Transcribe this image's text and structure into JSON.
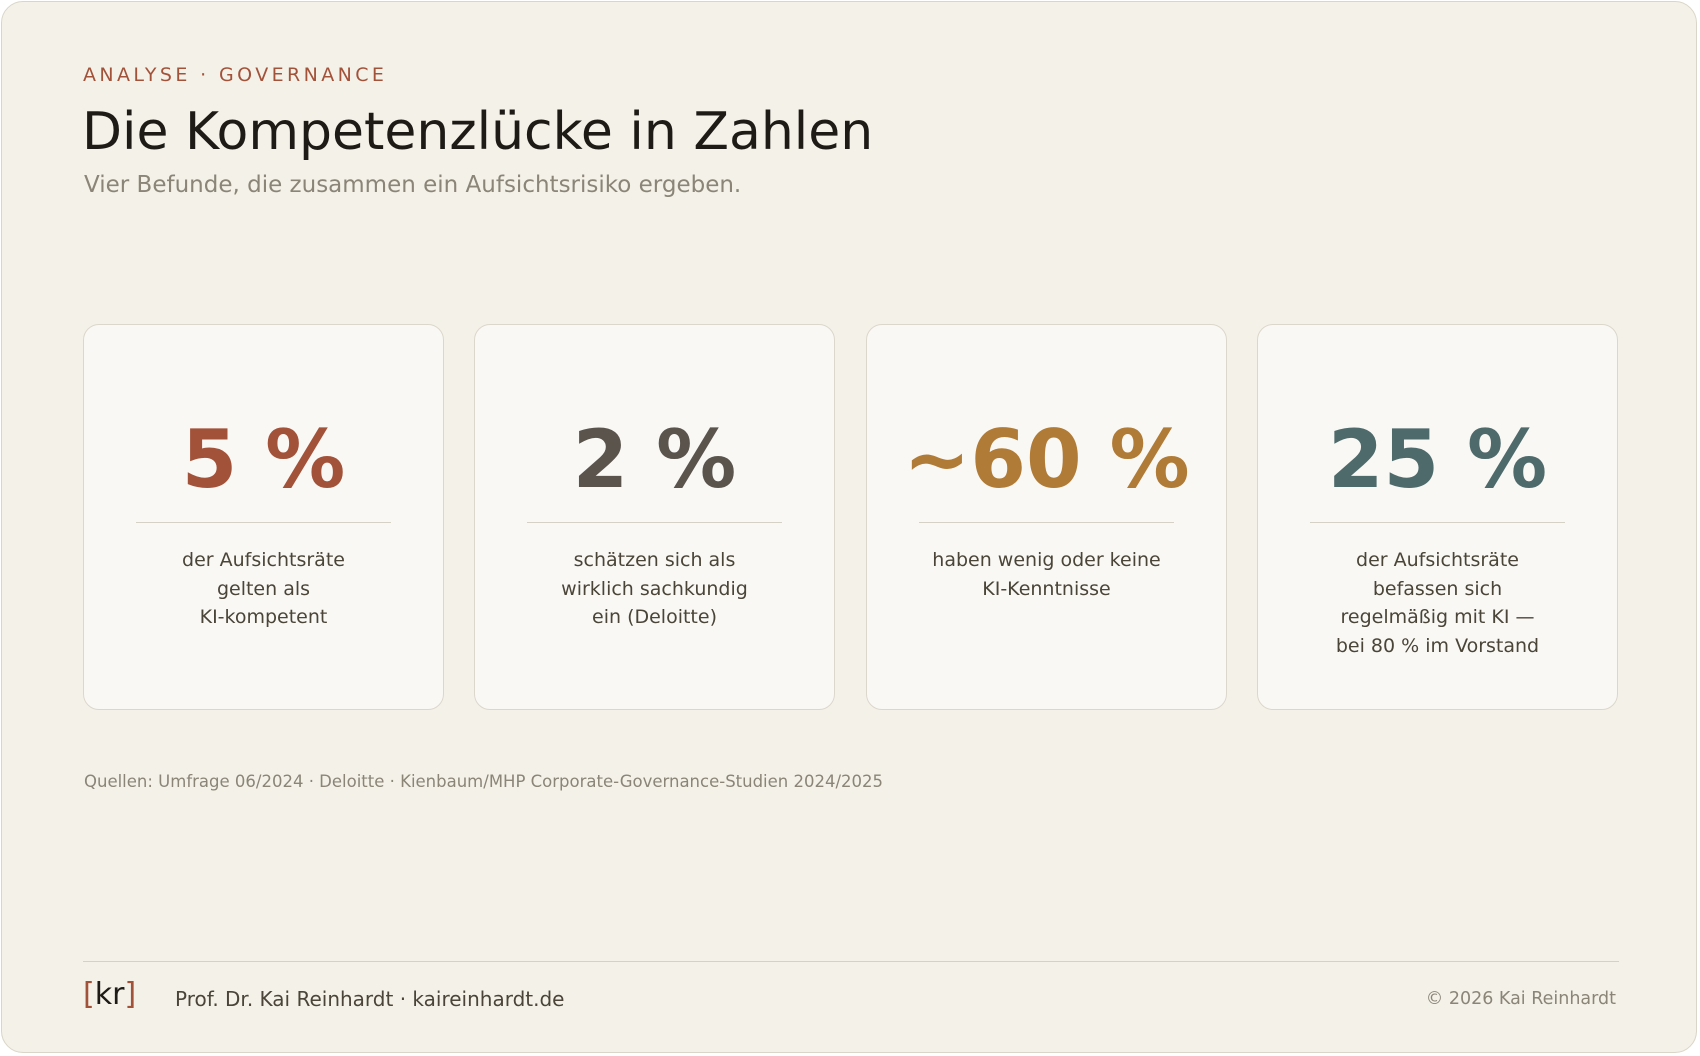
{
  "header": {
    "kicker": "ANALYSE · GOVERNANCE",
    "title": "Die Kompetenzlücke in Zahlen",
    "subtitle": "Vier Befunde, die zusammen ein Aufsichtsrisiko ergeben."
  },
  "cards": [
    {
      "value": "5 %",
      "color": "#a3523a",
      "lines": [
        "der Aufsichtsräte",
        "gelten als",
        "KI-kompetent"
      ]
    },
    {
      "value": "2 %",
      "color": "#5a544d",
      "lines": [
        "schätzen sich als",
        "wirklich sachkundig",
        "ein (Deloitte)"
      ]
    },
    {
      "value": "~60 %",
      "color": "#b07b36",
      "lines": [
        "haben wenig oder keine",
        "KI-Kenntnisse"
      ]
    },
    {
      "value": "25 %",
      "color": "#4e6a6b",
      "lines": [
        "der Aufsichtsräte",
        "befassen sich",
        "regelmäßig mit KI —",
        "bei 80 % im Vorstand"
      ]
    }
  ],
  "sources": "Quellen: Umfrage 06/2024 · Deloitte · Kienbaum/MHP Corporate-Governance-Studien 2024/2025",
  "footer": {
    "logo": [
      "[",
      "kr",
      "]"
    ],
    "author": "Prof. Dr. Kai Reinhardt · kaireinhardt.de",
    "copyright": "© 2026 Kai Reinhardt"
  }
}
